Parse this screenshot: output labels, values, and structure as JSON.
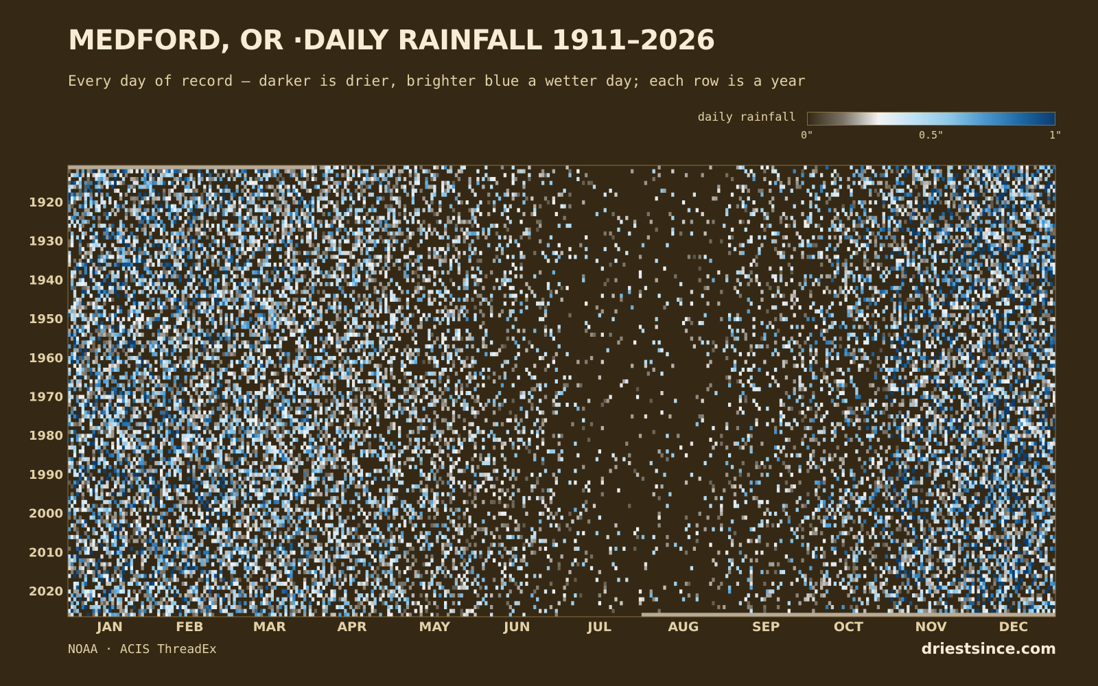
{
  "title": "MEDFORD, OR ·DAILY RAINFALL 1911–2026",
  "subtitle": "Every day of record — darker is drier, brighter blue a wetter day; each row is a year",
  "legend": {
    "label": "daily rainfall",
    "ticks": [
      {
        "value": 0,
        "label": "0\""
      },
      {
        "value": 0.5,
        "label": "0.5\""
      },
      {
        "value": 1,
        "label": "1\""
      }
    ],
    "min": 0,
    "max": 1
  },
  "footer": {
    "source": "NOAA · ACIS ThreadEx",
    "brand": "driestsince.com"
  },
  "colors": {
    "background": "#352915",
    "text": "#e3d1a8",
    "title": "#f7ecd6",
    "axis_frame": "#8a6f3e",
    "missing": "#b5ab98",
    "scale": [
      "#352915",
      "#7a7468",
      "#f2f2f2",
      "#bfe1f5",
      "#8ec8e8",
      "#4b98cf",
      "#1e6aa8",
      "#0b3d70"
    ]
  },
  "chart_data": {
    "type": "heatmap",
    "title": "MEDFORD, OR ·DAILY RAINFALL 1911–2026",
    "x_axis": "day of year",
    "y_axis": "year",
    "year_range": [
      1911,
      2026
    ],
    "y_ticks": [
      1920,
      1930,
      1940,
      1950,
      1960,
      1970,
      1980,
      1990,
      2000,
      2010,
      2020
    ],
    "months": [
      "JAN",
      "FEB",
      "MAR",
      "APR",
      "MAY",
      "JUN",
      "JUL",
      "AUG",
      "SEP",
      "OCT",
      "NOV",
      "DEC"
    ],
    "value_range": [
      0,
      1
    ],
    "value_unit": "inches",
    "missing_periods": [
      {
        "year": 1911,
        "start_month": "JAN",
        "end_month": "MAR"
      },
      {
        "year": 2026,
        "start_month": "AUG",
        "end_month": "DEC"
      }
    ],
    "monthly_wet_day_share": {
      "JAN": 0.52,
      "FEB": 0.5,
      "MAR": 0.5,
      "APR": 0.42,
      "MAY": 0.34,
      "JUN": 0.2,
      "JUL": 0.05,
      "AUG": 0.06,
      "SEP": 0.16,
      "OCT": 0.3,
      "NOV": 0.48,
      "DEC": 0.54
    },
    "monthly_wet_day_mean": {
      "JAN": 0.32,
      "FEB": 0.28,
      "MAR": 0.24,
      "APR": 0.2,
      "MAY": 0.18,
      "JUN": 0.16,
      "JUL": 0.14,
      "AUG": 0.15,
      "SEP": 0.18,
      "OCT": 0.24,
      "NOV": 0.32,
      "DEC": 0.34
    }
  }
}
